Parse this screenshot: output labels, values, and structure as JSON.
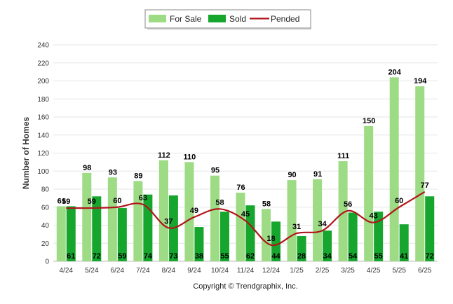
{
  "chart_data": {
    "type": "bar",
    "ylabel": "Number of Homes",
    "ylim": [
      0,
      240
    ],
    "ytick_step": 20,
    "grid": true,
    "legend_position": "top-center",
    "categories": [
      "4/24",
      "5/24",
      "6/24",
      "7/24",
      "8/24",
      "9/24",
      "10/24",
      "11/24",
      "12/24",
      "1/25",
      "2/25",
      "3/25",
      "4/25",
      "5/25",
      "6/25"
    ],
    "series": [
      {
        "name": "For Sale",
        "type": "bar",
        "color": "#9ddb84",
        "values": [
          61,
          98,
          93,
          89,
          112,
          110,
          95,
          76,
          58,
          90,
          91,
          111,
          150,
          204,
          194
        ]
      },
      {
        "name": "Sold",
        "type": "bar",
        "color": "#16a62e",
        "values": [
          61,
          72,
          59,
          74,
          73,
          38,
          55,
          62,
          44,
          28,
          34,
          54,
          55,
          41,
          72
        ]
      },
      {
        "name": "Pended",
        "type": "line",
        "color": "#b0161c",
        "values": [
          59,
          59,
          60,
          63,
          37,
          49,
          58,
          45,
          18,
          31,
          34,
          56,
          43,
          60,
          77
        ]
      }
    ]
  },
  "footer": {
    "copyright": "Copyright © Trendgraphix, Inc."
  }
}
